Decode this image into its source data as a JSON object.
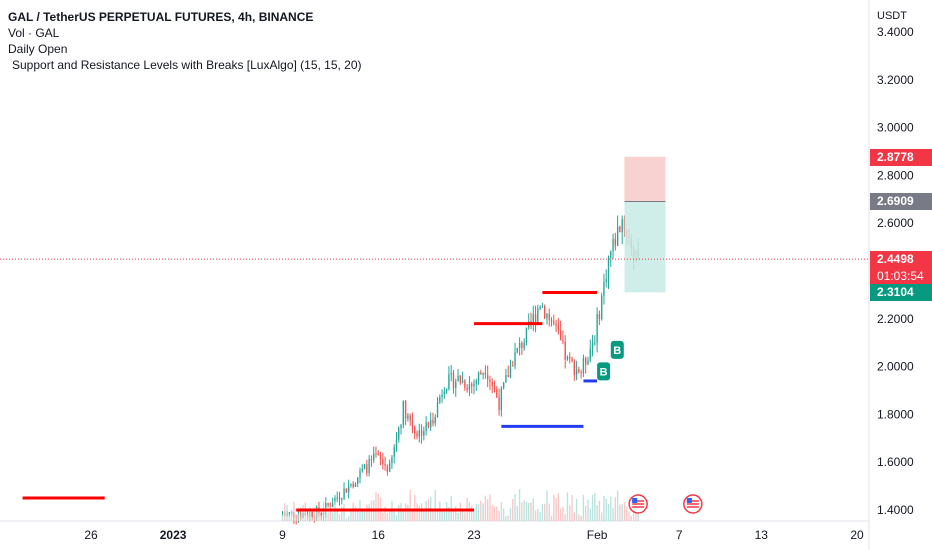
{
  "legend": {
    "title": "GAL / TetherUS PERPETUAL FUTURES, 4h, BINANCE",
    "volume": "Vol · GAL",
    "indicator1": "Daily Open",
    "indicator2": "Support and Resistance Levels with Breaks [LuxAlgo] (15, 15, 20)"
  },
  "axis": {
    "unit": "USDT",
    "y_ticks": [
      "3.4000",
      "3.2000",
      "3.0000",
      "2.8000",
      "2.6000",
      "2.4000",
      "2.2000",
      "2.0000",
      "1.8000",
      "1.6000",
      "1.4000"
    ],
    "x_ticks": [
      "26",
      "2023",
      "9",
      "16",
      "23",
      "Feb",
      "7",
      "13",
      "20"
    ]
  },
  "price_tags": {
    "target": "2.8778",
    "entry": "2.6909",
    "last": "2.4498",
    "countdown": "01:03:54",
    "stop": "2.3104"
  },
  "markers": {
    "break_label": "B"
  },
  "colors": {
    "up": "#26a69a",
    "down": "#ef5350",
    "resistance": "#ff0000",
    "support": "#233dee",
    "target_zone": "#f7c9c9",
    "stop_zone": "#c8ebe5",
    "grey_tag": "#787b86",
    "green_tag": "#089981",
    "red_tag": "#f23645"
  },
  "chart_data": {
    "type": "candlestick",
    "symbol": "GAL / TetherUS PERPETUAL FUTURES",
    "interval": "4h",
    "exchange": "BINANCE",
    "y_unit": "USDT",
    "ylim": [
      1.38,
      3.44
    ],
    "y_ticks": [
      3.4,
      3.2,
      3.0,
      2.8,
      2.6,
      2.4,
      2.2,
      2.0,
      1.8,
      1.6,
      1.4
    ],
    "x_range": [
      "2022-12-21",
      "2023-02-21"
    ],
    "x_ticks": [
      {
        "label": "26",
        "date": "2022-12-26"
      },
      {
        "label": "2023",
        "date": "2023-01-01"
      },
      {
        "label": "9",
        "date": "2023-01-09"
      },
      {
        "label": "16",
        "date": "2023-01-16"
      },
      {
        "label": "23",
        "date": "2023-01-23"
      },
      {
        "label": "Feb",
        "date": "2023-02-01"
      },
      {
        "label": "7",
        "date": "2023-02-07"
      },
      {
        "label": "13",
        "date": "2023-02-13"
      },
      {
        "label": "20",
        "date": "2023-02-20"
      }
    ],
    "price_anchors": [
      {
        "date": "2023-01-09",
        "price": 1.38
      },
      {
        "date": "2023-01-12",
        "price": 1.39
      },
      {
        "date": "2023-01-14",
        "price": 1.5
      },
      {
        "date": "2023-01-16",
        "price": 1.62
      },
      {
        "date": "2023-01-17",
        "price": 1.57
      },
      {
        "date": "2023-01-18",
        "price": 1.83
      },
      {
        "date": "2023-01-19",
        "price": 1.72
      },
      {
        "date": "2023-01-20",
        "price": 1.76
      },
      {
        "date": "2023-01-21",
        "price": 1.93
      },
      {
        "date": "2023-01-22",
        "price": 1.95
      },
      {
        "date": "2023-01-23",
        "price": 1.92
      },
      {
        "date": "2023-01-24",
        "price": 2.0
      },
      {
        "date": "2023-01-25",
        "price": 1.85
      },
      {
        "date": "2023-01-26",
        "price": 2.03
      },
      {
        "date": "2023-01-27",
        "price": 2.13
      },
      {
        "date": "2023-01-28",
        "price": 2.27
      },
      {
        "date": "2023-01-29",
        "price": 2.17
      },
      {
        "date": "2023-01-30",
        "price": 2.02
      },
      {
        "date": "2023-01-31",
        "price": 1.98
      },
      {
        "date": "2023-02-01",
        "price": 2.13
      },
      {
        "date": "2023-02-02",
        "price": 2.45
      },
      {
        "date": "2023-02-03",
        "price": 2.62
      },
      {
        "date": "2023-02-04",
        "price": 2.45
      }
    ],
    "levels": [
      {
        "kind": "resistance",
        "price": 1.45,
        "from": "2022-12-21",
        "to": "2022-12-27"
      },
      {
        "kind": "resistance",
        "price": 1.4,
        "from": "2023-01-10",
        "to": "2023-01-23"
      },
      {
        "kind": "resistance",
        "price": 2.18,
        "from": "2023-01-23",
        "to": "2023-01-28"
      },
      {
        "kind": "resistance",
        "price": 2.31,
        "from": "2023-01-28",
        "to": "2023-02-01"
      },
      {
        "kind": "support",
        "price": 1.75,
        "from": "2023-01-25",
        "to": "2023-01-31"
      },
      {
        "kind": "support",
        "price": 1.94,
        "from": "2023-01-31",
        "to": "2023-02-01"
      }
    ],
    "break_markers": [
      {
        "label": "B",
        "date": "2023-02-01",
        "price": 1.98
      },
      {
        "label": "B",
        "date": "2023-02-02",
        "price": 2.07
      }
    ],
    "position": {
      "from": "2023-02-03",
      "to": "2023-02-06",
      "entry": 2.6909,
      "target": 2.8778,
      "stop": 2.3104
    },
    "last_price": 2.4498,
    "countdown": "01:03:54",
    "events": [
      {
        "icon": "us-flag",
        "date": "2023-02-04"
      },
      {
        "icon": "us-flag",
        "date": "2023-02-08"
      }
    ],
    "grid": false,
    "volume": true
  }
}
